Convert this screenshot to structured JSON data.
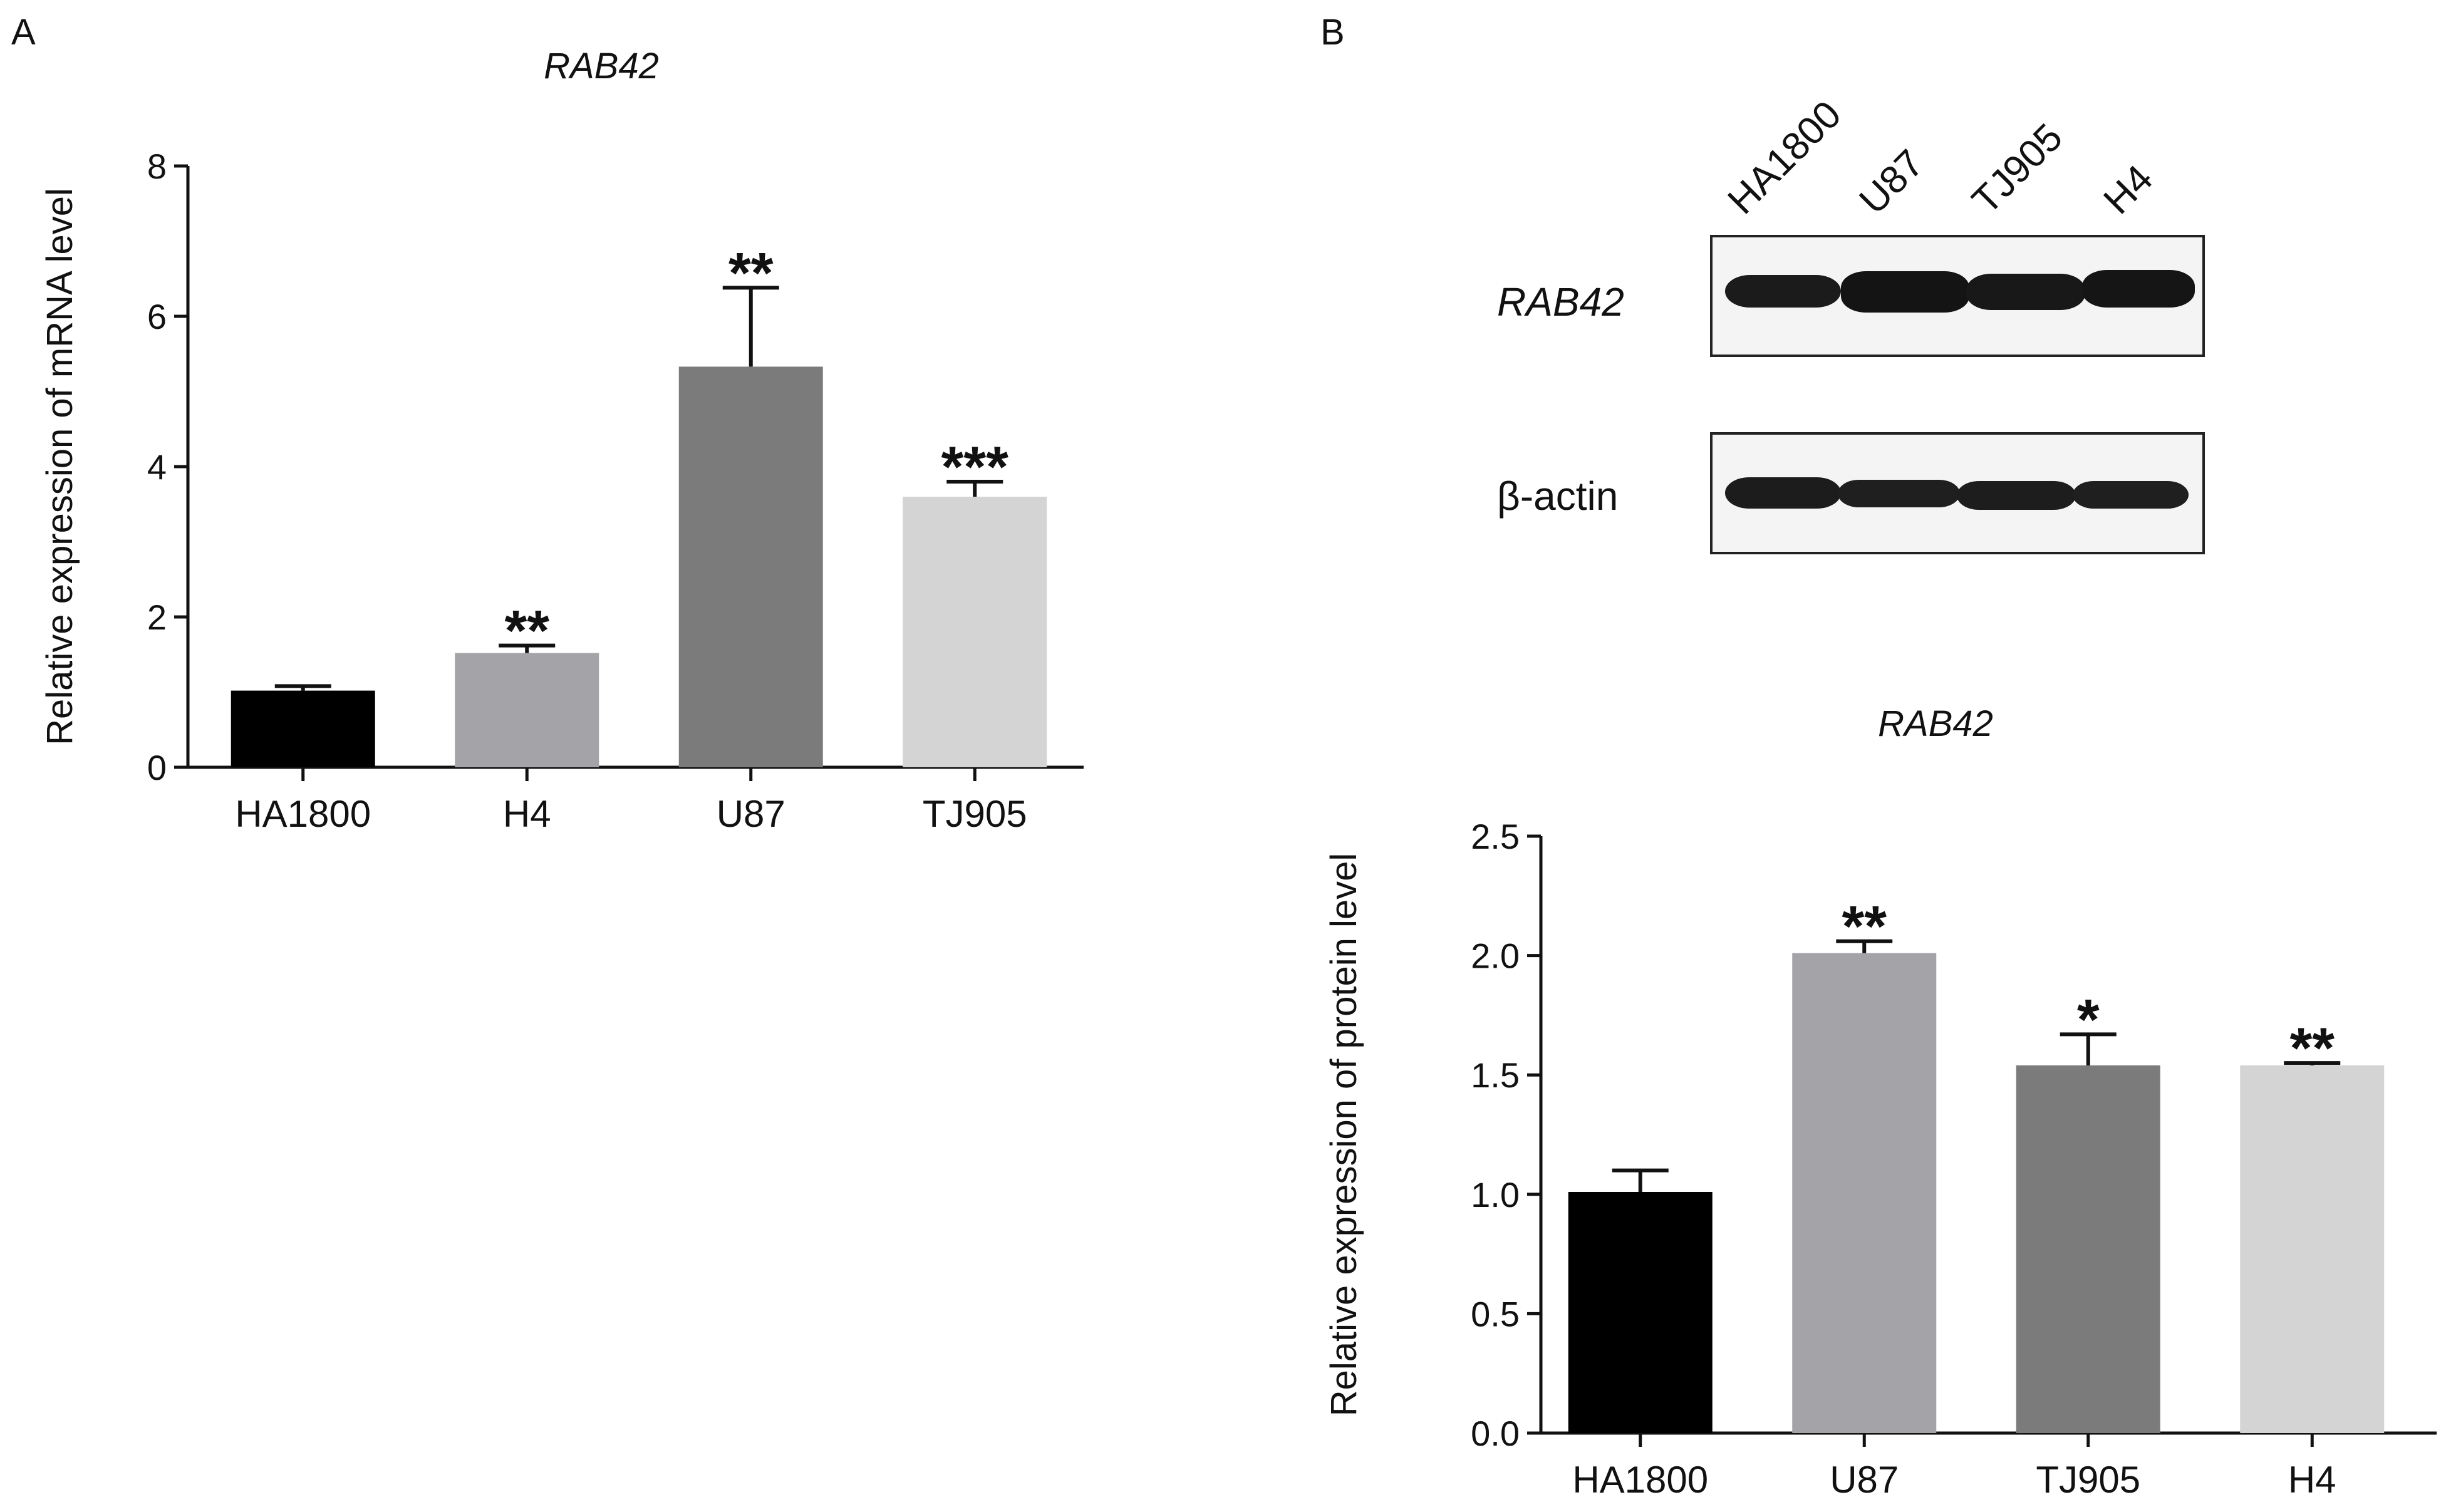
{
  "panels": [
    {
      "letter": "A"
    },
    {
      "letter": "B"
    }
  ],
  "chart_data": [
    {
      "type": "bar",
      "title": "RAB42",
      "ylabel": "Relative expression of mRNA level",
      "xlabel": "",
      "categories": [
        "HA1800",
        "H4",
        "U87",
        "TJ905"
      ],
      "values": [
        1.02,
        1.52,
        5.33,
        3.6
      ],
      "errors": [
        0.06,
        0.1,
        1.05,
        0.2
      ],
      "significance": [
        "",
        "**",
        "**",
        "***"
      ],
      "colors": [
        "#000000",
        "#a3a3a8",
        "#7b7b7b",
        "#d4d4d4"
      ],
      "ylim": [
        0,
        8
      ],
      "yticks": [
        0,
        2,
        4,
        6,
        8
      ],
      "ytick_labels": [
        "0",
        "2",
        "4",
        "6",
        "8"
      ]
    },
    {
      "type": "bar",
      "title": "RAB42",
      "ylabel": "Relative expression of protein level",
      "xlabel": "",
      "categories": [
        "HA1800",
        "U87",
        "TJ905",
        "H4"
      ],
      "values": [
        1.01,
        2.01,
        1.54,
        1.54
      ],
      "errors": [
        0.09,
        0.05,
        0.13,
        0.01
      ],
      "significance": [
        "",
        "**",
        "*",
        "**"
      ],
      "colors": [
        "#000000",
        "#a3a3a8",
        "#7b7b7b",
        "#d4d4d4"
      ],
      "ylim": [
        0,
        2.5
      ],
      "yticks": [
        0,
        0.5,
        1.0,
        1.5,
        2.0,
        2.5
      ],
      "ytick_labels": [
        "0.0",
        "0.5",
        "1.0",
        "1.5",
        "2.0",
        "2.5"
      ]
    }
  ],
  "western_blot": {
    "lanes": [
      "HA1800",
      "U87",
      "TJ905",
      "H4"
    ],
    "rows": [
      {
        "label": "RAB42"
      },
      {
        "label": "β-actin"
      }
    ]
  }
}
